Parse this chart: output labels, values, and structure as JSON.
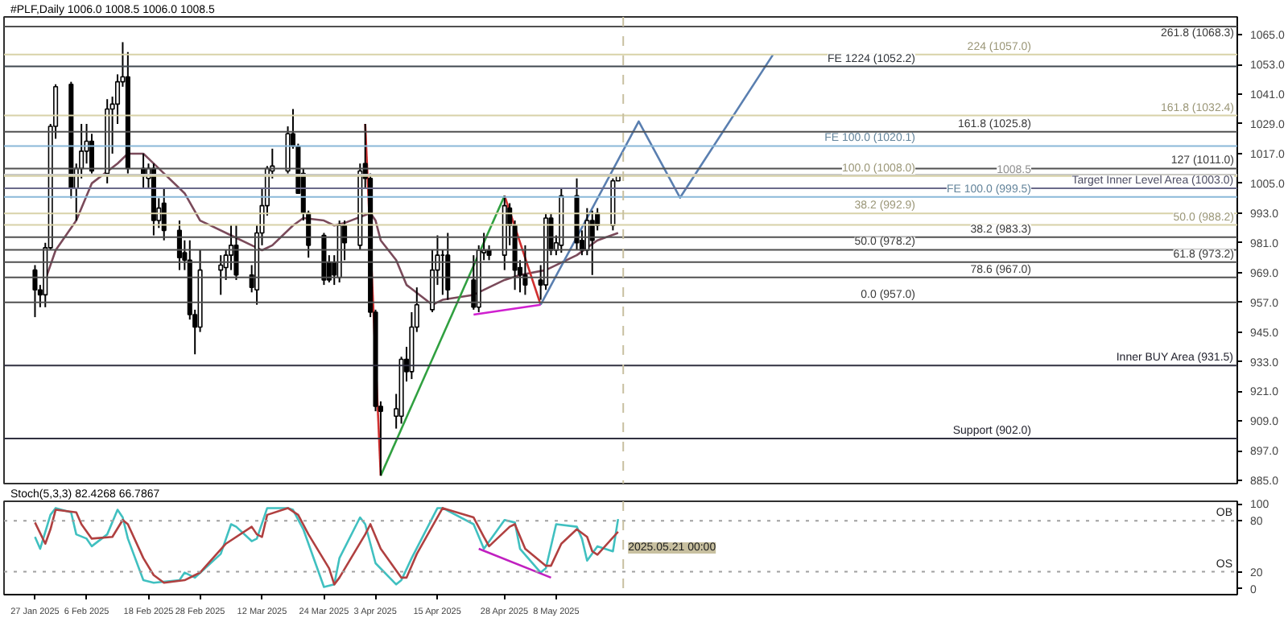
{
  "chart_data": [
    {
      "type": "candlestick",
      "title": "#PLF,Daily  1006.0 1008.5 1006.0 1008.5",
      "x": [
        "2025-01-27",
        "2025-01-28",
        "2025-01-29",
        "2025-01-30",
        "2025-01-31",
        "2025-02-03",
        "2025-02-04",
        "2025-02-05",
        "2025-02-06",
        "2025-02-07",
        "2025-02-10",
        "2025-02-11",
        "2025-02-12",
        "2025-02-13",
        "2025-02-14",
        "2025-02-17",
        "2025-02-18",
        "2025-02-19",
        "2025-02-20",
        "2025-02-21",
        "2025-02-24",
        "2025-02-25",
        "2025-02-26",
        "2025-02-27",
        "2025-02-28",
        "2025-03-04",
        "2025-03-05",
        "2025-03-06",
        "2025-03-07",
        "2025-03-10",
        "2025-03-11",
        "2025-03-12",
        "2025-03-13",
        "2025-03-14",
        "2025-03-17",
        "2025-03-18",
        "2025-03-19",
        "2025-03-20",
        "2025-03-21",
        "2025-03-24",
        "2025-03-25",
        "2025-03-26",
        "2025-03-27",
        "2025-03-28",
        "2025-03-31",
        "2025-04-01",
        "2025-04-02",
        "2025-04-03",
        "2025-04-04",
        "2025-04-07",
        "2025-04-08",
        "2025-04-09",
        "2025-04-10",
        "2025-04-11",
        "2025-04-14",
        "2025-04-15",
        "2025-04-16",
        "2025-04-17",
        "2025-04-22",
        "2025-04-23",
        "2025-04-24",
        "2025-04-25",
        "2025-04-28",
        "2025-04-29",
        "2025-04-30",
        "2025-05-01",
        "2025-05-02",
        "2025-05-05",
        "2025-05-06",
        "2025-05-07",
        "2025-05-08",
        "2025-05-09",
        "2025-05-12",
        "2025-05-13",
        "2025-05-14",
        "2025-05-15",
        "2025-05-16",
        "2025-05-19",
        "2025-05-20"
      ],
      "ohlc": [
        [
          970,
          972,
          951,
          962
        ],
        [
          962,
          964,
          955,
          960
        ],
        [
          960,
          981,
          955,
          979
        ],
        [
          979,
          1029,
          978,
          1028
        ],
        [
          1028,
          1045,
          1023,
          1044
        ],
        [
          1045,
          1046,
          999,
          1003
        ],
        [
          1003,
          1013,
          990,
          1011
        ],
        [
          1011,
          1029,
          1007,
          1018
        ],
        [
          1018,
          1029,
          1013,
          1022
        ],
        [
          1022,
          1025,
          1009,
          1010
        ],
        [
          1009,
          1039,
          1005,
          1035
        ],
        [
          1035,
          1040,
          1017,
          1037
        ],
        [
          1037,
          1049,
          1029,
          1046
        ],
        [
          1046,
          1062,
          1044,
          1048
        ],
        [
          1048,
          1058,
          1009,
          1011
        ],
        [
          1011,
          1017,
          1003,
          1008
        ],
        [
          1007,
          1013,
          1003,
          1011
        ],
        [
          1011,
          1013,
          984,
          990
        ],
        [
          990,
          999,
          987,
          995
        ],
        [
          997,
          1003,
          982,
          986
        ],
        [
          986,
          990,
          970,
          975
        ],
        [
          977,
          982,
          970,
          974
        ],
        [
          974,
          982,
          950,
          952
        ],
        [
          952,
          954,
          936,
          947
        ],
        [
          947,
          978,
          945,
          970
        ],
        [
          970,
          976,
          960,
          972
        ],
        [
          971,
          978,
          966,
          976
        ],
        [
          976,
          988,
          970,
          980
        ],
        [
          980,
          988,
          966,
          968
        ],
        [
          968,
          972,
          961,
          963
        ],
        [
          962,
          988,
          956,
          985
        ],
        [
          985,
          1003,
          980,
          996
        ],
        [
          996,
          1012,
          992,
          1011
        ],
        [
          1010,
          1019,
          1007,
          1012
        ],
        [
          1010,
          1028,
          1009,
          1025
        ],
        [
          1025,
          1035,
          1019,
          1020
        ],
        [
          1020,
          1021,
          1001,
          1001
        ],
        [
          1009,
          1011,
          990,
          993
        ],
        [
          993,
          994,
          975,
          980
        ],
        [
          984,
          985,
          964,
          966
        ],
        [
          973,
          976,
          965,
          966
        ],
        [
          973,
          976,
          964,
          968
        ],
        [
          967,
          990,
          965,
          988
        ],
        [
          988,
          990,
          974,
          981
        ],
        [
          980,
          1013,
          978,
          1010
        ],
        [
          1013,
          1029,
          1003,
          1007
        ],
        [
          1007,
          1009,
          951,
          953
        ],
        [
          953,
          954,
          913,
          915
        ],
        [
          915,
          917,
          887,
          913
        ],
        [
          911,
          920,
          906,
          914
        ],
        [
          911,
          935,
          908,
          934
        ],
        [
          934,
          939,
          925,
          929
        ],
        [
          929,
          953,
          926,
          947
        ],
        [
          947,
          963,
          945,
          956
        ],
        [
          954,
          978,
          953,
          970
        ],
        [
          970,
          984,
          964,
          976
        ],
        [
          976,
          978,
          960,
          976
        ],
        [
          976,
          985,
          958,
          962
        ],
        [
          966,
          976,
          954,
          955
        ],
        [
          955,
          980,
          953,
          978
        ],
        [
          977,
          985,
          974,
          978
        ],
        [
          978,
          980,
          974,
          976
        ],
        [
          976,
          1000,
          970,
          996
        ],
        [
          995,
          997,
          980,
          988
        ],
        [
          988,
          990,
          962,
          970
        ],
        [
          971,
          974,
          961,
          968
        ],
        [
          968,
          980,
          960,
          964
        ],
        [
          966,
          972,
          958,
          964
        ],
        [
          964,
          993,
          962,
          991
        ],
        [
          991,
          993,
          976,
          978
        ],
        [
          978,
          984,
          976,
          981
        ],
        [
          980,
          1003,
          977,
          1000
        ],
        [
          1000,
          1007,
          978,
          981
        ],
        [
          982,
          986,
          976,
          978
        ],
        [
          978,
          995,
          976,
          990
        ],
        [
          990,
          994,
          968,
          982
        ],
        [
          993,
          995,
          986,
          988
        ],
        [
          988,
          1007,
          986,
          1006
        ],
        [
          1006.0,
          1008.5,
          1006.0,
          1008.5
        ]
      ],
      "series": [
        {
          "type": "line",
          "color": "#7a4a5a",
          "x": [
            "2025-01-29",
            "2025-01-31",
            "2025-02-04",
            "2025-02-07",
            "2025-02-12",
            "2025-02-14",
            "2025-02-17",
            "2025-02-20",
            "2025-02-25",
            "2025-02-28",
            "2025-03-06",
            "2025-03-10",
            "2025-03-12",
            "2025-03-14",
            "2025-03-18",
            "2025-03-20",
            "2025-03-24",
            "2025-03-26",
            "2025-03-28",
            "2025-04-02",
            "2025-04-03",
            "2025-04-04",
            "2025-04-07",
            "2025-04-09",
            "2025-04-14",
            "2025-04-16",
            "2025-04-22",
            "2025-04-28",
            "2025-05-01",
            "2025-05-06",
            "2025-05-12",
            "2025-05-14",
            "2025-05-16",
            "2025-05-20"
          ],
          "values": [
            966,
            978,
            990,
            1005,
            1013,
            1017,
            1017,
            1011,
            1001,
            990,
            984,
            980,
            978,
            980,
            988,
            991,
            990,
            988,
            989,
            993,
            990,
            982,
            974,
            964,
            956,
            958,
            960,
            966,
            968,
            970,
            976,
            979,
            982,
            985
          ]
        },
        {
          "type": "line",
          "color": "#d03030",
          "x": [
            "2025-04-01",
            "2025-04-04"
          ],
          "values": [
            1029,
            887
          ]
        },
        {
          "type": "line",
          "color": "#30a040",
          "x": [
            "2025-04-04",
            "2025-04-28"
          ],
          "values": [
            887,
            1000
          ]
        },
        {
          "type": "line",
          "color": "#d03030",
          "x": [
            "2025-04-28",
            "2025-05-05"
          ],
          "values": [
            1000,
            956
          ]
        },
        {
          "type": "line",
          "color": "#d020d0",
          "x": [
            "2025-04-22",
            "2025-05-05"
          ],
          "values": [
            952,
            956
          ]
        },
        {
          "type": "line",
          "color": "#5a7fb0",
          "x": [
            "2025-05-05",
            "2025-05-24",
            "2025-06-01",
            "2025-06-19"
          ],
          "values": [
            956,
            1030,
            999.2,
            1056.9
          ]
        }
      ],
      "ref_lines": [
        {
          "axis": "y",
          "value": 1068.3,
          "label": "261.8 (1068.3)",
          "color": "#505050"
        },
        {
          "axis": "y",
          "value": 1057.0,
          "label": "224 (1057.0)",
          "color": "#d8d2a8"
        },
        {
          "axis": "y",
          "value": 1052.2,
          "label": "FE 1224 (1052.2)",
          "color": "#404850"
        },
        {
          "axis": "y",
          "value": 1032.4,
          "label": "161.8 (1032.4)",
          "color": "#d8d2a8"
        },
        {
          "axis": "y",
          "value": 1025.8,
          "label": "161.8 (1025.8)",
          "color": "#505050"
        },
        {
          "axis": "y",
          "value": 1020.1,
          "label": "FE 100.0 (1020.1)",
          "color": "#8ab8d8"
        },
        {
          "axis": "y",
          "value": 1011.0,
          "label": "127 (1011.0)",
          "color": "#505050"
        },
        {
          "axis": "y",
          "value": 1008.5,
          "label": "1008.5",
          "color": "#c8c8c8"
        },
        {
          "axis": "y",
          "value": 1008.0,
          "label": "100.0 (1008.0)",
          "color": "#d8d2a8"
        },
        {
          "axis": "y",
          "value": 1003.0,
          "label": "Target Inner Level Area (1003.0)",
          "color": "#6a6a8a"
        },
        {
          "axis": "y",
          "value": 999.5,
          "label": "FE 100.0 (999.5)",
          "color": "#8ab8d8"
        },
        {
          "axis": "y",
          "value": 992.9,
          "label": "38.2 (992.9)",
          "color": "#d8d2a8"
        },
        {
          "axis": "y",
          "value": 988.2,
          "label": "50.0 (988.2)",
          "color": "#d8d2a8"
        },
        {
          "axis": "y",
          "value": 983.3,
          "label": "38.2 (983.3)",
          "color": "#505050"
        },
        {
          "axis": "y",
          "value": 978.2,
          "label": "50.0 (978.2)",
          "color": "#505050"
        },
        {
          "axis": "y",
          "value": 973.2,
          "label": "61.8 (973.2)",
          "color": "#505050"
        },
        {
          "axis": "y",
          "value": 967.0,
          "label": "78.6 (967.0)",
          "color": "#505050"
        },
        {
          "axis": "y",
          "value": 957.0,
          "label": "0.0 (957.0)",
          "color": "#505050"
        },
        {
          "axis": "y",
          "value": 931.5,
          "label": "Inner BUY Area (931.5)",
          "color": "#303040"
        },
        {
          "axis": "y",
          "value": 902.0,
          "label": "Support (902.0)",
          "color": "#303040"
        },
        {
          "axis": "x",
          "value": "2025-05-21",
          "color": "#c8c0a0",
          "line_style": "dashed"
        }
      ],
      "xlim": [
        "2025-01-21",
        "2025-09-17"
      ],
      "ylim": [
        883.8,
        1072.2
      ],
      "yticks": [
        {
          "value": 885,
          "label": "885.0"
        },
        {
          "value": 897,
          "label": "897.0"
        },
        {
          "value": 909,
          "label": "909.0"
        },
        {
          "value": 921,
          "label": "921.0"
        },
        {
          "value": 933,
          "label": "933.0"
        },
        {
          "value": 945,
          "label": "945.0"
        },
        {
          "value": 957,
          "label": "957.0"
        },
        {
          "value": 969,
          "label": "969.0"
        },
        {
          "value": 981,
          "label": "981.0"
        },
        {
          "value": 993,
          "label": "993.0"
        },
        {
          "value": 1005,
          "label": "1005.0"
        },
        {
          "value": 1017,
          "label": "1017.0"
        },
        {
          "value": 1029,
          "label": "1029.0"
        },
        {
          "value": 1041,
          "label": "1041.0"
        },
        {
          "value": 1053,
          "label": "1053.0"
        },
        {
          "value": 1065,
          "label": "1065.0"
        }
      ],
      "tick_labels": "y"
    },
    {
      "type": "line",
      "title": "Stoch(5,3,3) 82.4268 66.7867",
      "series": [
        {
          "type": "line",
          "color": "#40c0c0",
          "x": [
            "2025-01-27",
            "2025-01-28",
            "2025-01-30",
            "2025-01-31",
            "2025-02-03",
            "2025-02-04",
            "2025-02-06",
            "2025-02-07",
            "2025-02-10",
            "2025-02-12",
            "2025-02-13",
            "2025-02-14",
            "2025-02-17",
            "2025-02-19",
            "2025-02-24",
            "2025-02-25",
            "2025-02-27",
            "2025-03-04",
            "2025-03-06",
            "2025-03-07",
            "2025-03-10",
            "2025-03-11",
            "2025-03-13",
            "2025-03-17",
            "2025-03-18",
            "2025-03-20",
            "2025-03-24",
            "2025-03-26",
            "2025-03-27",
            "2025-03-31",
            "2025-04-01",
            "2025-04-03",
            "2025-04-07",
            "2025-04-08",
            "2025-04-10",
            "2025-04-15",
            "2025-04-16",
            "2025-04-22",
            "2025-04-24",
            "2025-04-28",
            "2025-04-30",
            "2025-05-01",
            "2025-05-05",
            "2025-05-06",
            "2025-05-08",
            "2025-05-12",
            "2025-05-13",
            "2025-05-14",
            "2025-05-16",
            "2025-05-19",
            "2025-05-20"
          ],
          "values": [
            61,
            47,
            87,
            95,
            90,
            64,
            59,
            50,
            64,
            93,
            84,
            59,
            10,
            7,
            10,
            19,
            13,
            41,
            76,
            73,
            56,
            59,
            95,
            95,
            93,
            70,
            2,
            5,
            36,
            84,
            76,
            30,
            5,
            10,
            36,
            95,
            95,
            76,
            47,
            81,
            78,
            47,
            19,
            24,
            76,
            73,
            59,
            33,
            50,
            44,
            82
          ]
        },
        {
          "type": "line",
          "color": "#b04040",
          "x": [
            "2025-01-27",
            "2025-01-29",
            "2025-01-30",
            "2025-01-31",
            "2025-02-04",
            "2025-02-05",
            "2025-02-07",
            "2025-02-11",
            "2025-02-13",
            "2025-02-14",
            "2025-02-17",
            "2025-02-19",
            "2025-02-21",
            "2025-02-25",
            "2025-02-27",
            "2025-02-28",
            "2025-03-05",
            "2025-03-10",
            "2025-03-11",
            "2025-03-12",
            "2025-03-13",
            "2025-03-17",
            "2025-03-19",
            "2025-03-21",
            "2025-03-25",
            "2025-03-26",
            "2025-03-27",
            "2025-04-01",
            "2025-04-02",
            "2025-04-04",
            "2025-04-08",
            "2025-04-09",
            "2025-04-11",
            "2025-04-16",
            "2025-04-22",
            "2025-04-24",
            "2025-04-25",
            "2025-04-29",
            "2025-04-30",
            "2025-05-02",
            "2025-05-06",
            "2025-05-07",
            "2025-05-09",
            "2025-05-12",
            "2025-05-14",
            "2025-05-15",
            "2025-05-16",
            "2025-05-20"
          ],
          "values": [
            78,
            53,
            70,
            93,
            90,
            76,
            59,
            61,
            81,
            76,
            36,
            16,
            7,
            10,
            16,
            19,
            53,
            73,
            64,
            61,
            87,
            95,
            87,
            64,
            24,
            5,
            13,
            64,
            76,
            47,
            13,
            13,
            41,
            95,
            84,
            61,
            50,
            73,
            76,
            47,
            27,
            27,
            53,
            70,
            61,
            44,
            40,
            67
          ]
        },
        {
          "type": "line",
          "color": "#c020c0",
          "x": [
            "2025-04-23",
            "2025-05-07"
          ],
          "values": [
            47,
            13
          ]
        }
      ],
      "ref_lines": [
        {
          "axis": "y",
          "value": 80,
          "label": "OB",
          "color": "#a0a0a0",
          "line_style": "dotted"
        },
        {
          "axis": "y",
          "value": 20,
          "label": "OS",
          "color": "#a0a0a0",
          "line_style": "dotted"
        },
        {
          "axis": "x",
          "value": "2025-05-21",
          "label": "2025.05.21 00:00",
          "color": "#c8c0a0",
          "line_style": "dashed"
        }
      ],
      "xlim": [
        "2025-01-21",
        "2025-09-17"
      ],
      "ylim": [
        -7,
        103
      ],
      "yticks": [
        0,
        20,
        80,
        100
      ],
      "xticks": [
        {
          "value": "2025-01-27",
          "label": "27 Jan 2025"
        },
        {
          "value": "2025-02-06",
          "label": "6 Feb 2025"
        },
        {
          "value": "2025-02-18",
          "label": "18 Feb 2025"
        },
        {
          "value": "2025-02-28",
          "label": "28 Feb 2025"
        },
        {
          "value": "2025-03-12",
          "label": "12 Mar 2025"
        },
        {
          "value": "2025-03-24",
          "label": "24 Mar 2025"
        },
        {
          "value": "2025-04-03",
          "label": "3 Apr 2025"
        },
        {
          "value": "2025-04-15",
          "label": "15 Apr 2025"
        },
        {
          "value": "2025-04-28",
          "label": "28 Apr 2025"
        },
        {
          "value": "2025-05-08",
          "label": "8 May 2025"
        }
      ]
    }
  ]
}
